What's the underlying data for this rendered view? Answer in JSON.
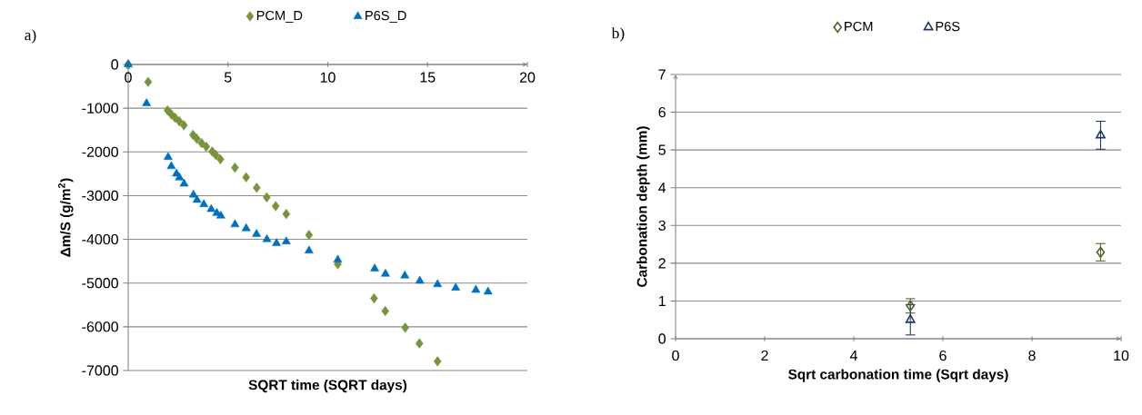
{
  "chart_data": [
    {
      "type": "scatter",
      "xlabel": "SQRT time (SQRT days)",
      "ylabel": "Δm/S (g/m$^{2}$)",
      "annotations": [
        "a)"
      ],
      "xlim": [
        0,
        20
      ],
      "ylim": [
        -7000,
        0
      ],
      "xticks": [
        0,
        5,
        10,
        15,
        20
      ],
      "yticks": [
        -7000,
        -6000,
        -5000,
        -4000,
        -3000,
        -2000,
        -1000,
        0
      ],
      "grid": "y",
      "legend": "top",
      "series": [
        {
          "name": "PCM_D",
          "color": "#77933c",
          "marker": "diamond",
          "x": [
            0,
            1.0,
            1.97,
            2.16,
            2.35,
            2.56,
            2.79,
            3.25,
            3.44,
            3.68,
            3.91,
            4.21,
            4.39,
            4.62,
            5.35,
            5.91,
            6.44,
            6.94,
            7.39,
            7.92,
            9.06,
            10.5,
            12.32,
            12.88,
            13.88,
            14.59,
            15.5
          ],
          "values": [
            0,
            -400,
            -1050,
            -1140,
            -1220,
            -1300,
            -1390,
            -1610,
            -1700,
            -1800,
            -1880,
            -1990,
            -2070,
            -2170,
            -2360,
            -2580,
            -2820,
            -3040,
            -3240,
            -3420,
            -3900,
            -4570,
            -5350,
            -5640,
            -6020,
            -6380,
            -6790
          ]
        },
        {
          "name": "P6S_D",
          "color": "#0070c0",
          "marker": "triangle",
          "x": [
            0,
            0.92,
            2.0,
            2.16,
            2.42,
            2.57,
            2.8,
            3.27,
            3.45,
            3.79,
            4.16,
            4.44,
            4.64,
            5.35,
            5.91,
            6.43,
            6.95,
            7.43,
            7.92,
            9.06,
            10.5,
            12.35,
            12.89,
            13.86,
            14.61,
            15.5,
            16.41,
            17.42,
            18.03
          ],
          "values": [
            0,
            -890,
            -2120,
            -2330,
            -2500,
            -2590,
            -2730,
            -2980,
            -3100,
            -3200,
            -3310,
            -3400,
            -3460,
            -3660,
            -3750,
            -3880,
            -4000,
            -4090,
            -4050,
            -4260,
            -4470,
            -4670,
            -4790,
            -4830,
            -4950,
            -5030,
            -5110,
            -5160,
            -5200
          ]
        }
      ]
    },
    {
      "type": "scatter",
      "xlabel": "Sqrt carbonation  time (Sqrt days)",
      "ylabel": "Carbonation  depth (mm)",
      "annotations": [
        "b)"
      ],
      "xlim": [
        0,
        10
      ],
      "ylim": [
        0,
        7
      ],
      "xticks": [
        0,
        2,
        4,
        6,
        8,
        10
      ],
      "yticks": [
        0,
        1,
        2,
        3,
        4,
        5,
        6,
        7
      ],
      "grid": "y",
      "legend": "top",
      "series": [
        {
          "name": "PCM",
          "color": "#4f6228",
          "marker": "diamond",
          "x": [
            5.27,
            9.54
          ],
          "values": [
            0.87,
            2.29
          ],
          "errors": [
            0.19,
            0.23
          ]
        },
        {
          "name": "P6S",
          "color": "#1f3864",
          "marker": "triangle",
          "x": [
            5.27,
            9.54
          ],
          "values": [
            0.5,
            5.39
          ],
          "errors": [
            0.4,
            0.37
          ]
        }
      ]
    }
  ]
}
